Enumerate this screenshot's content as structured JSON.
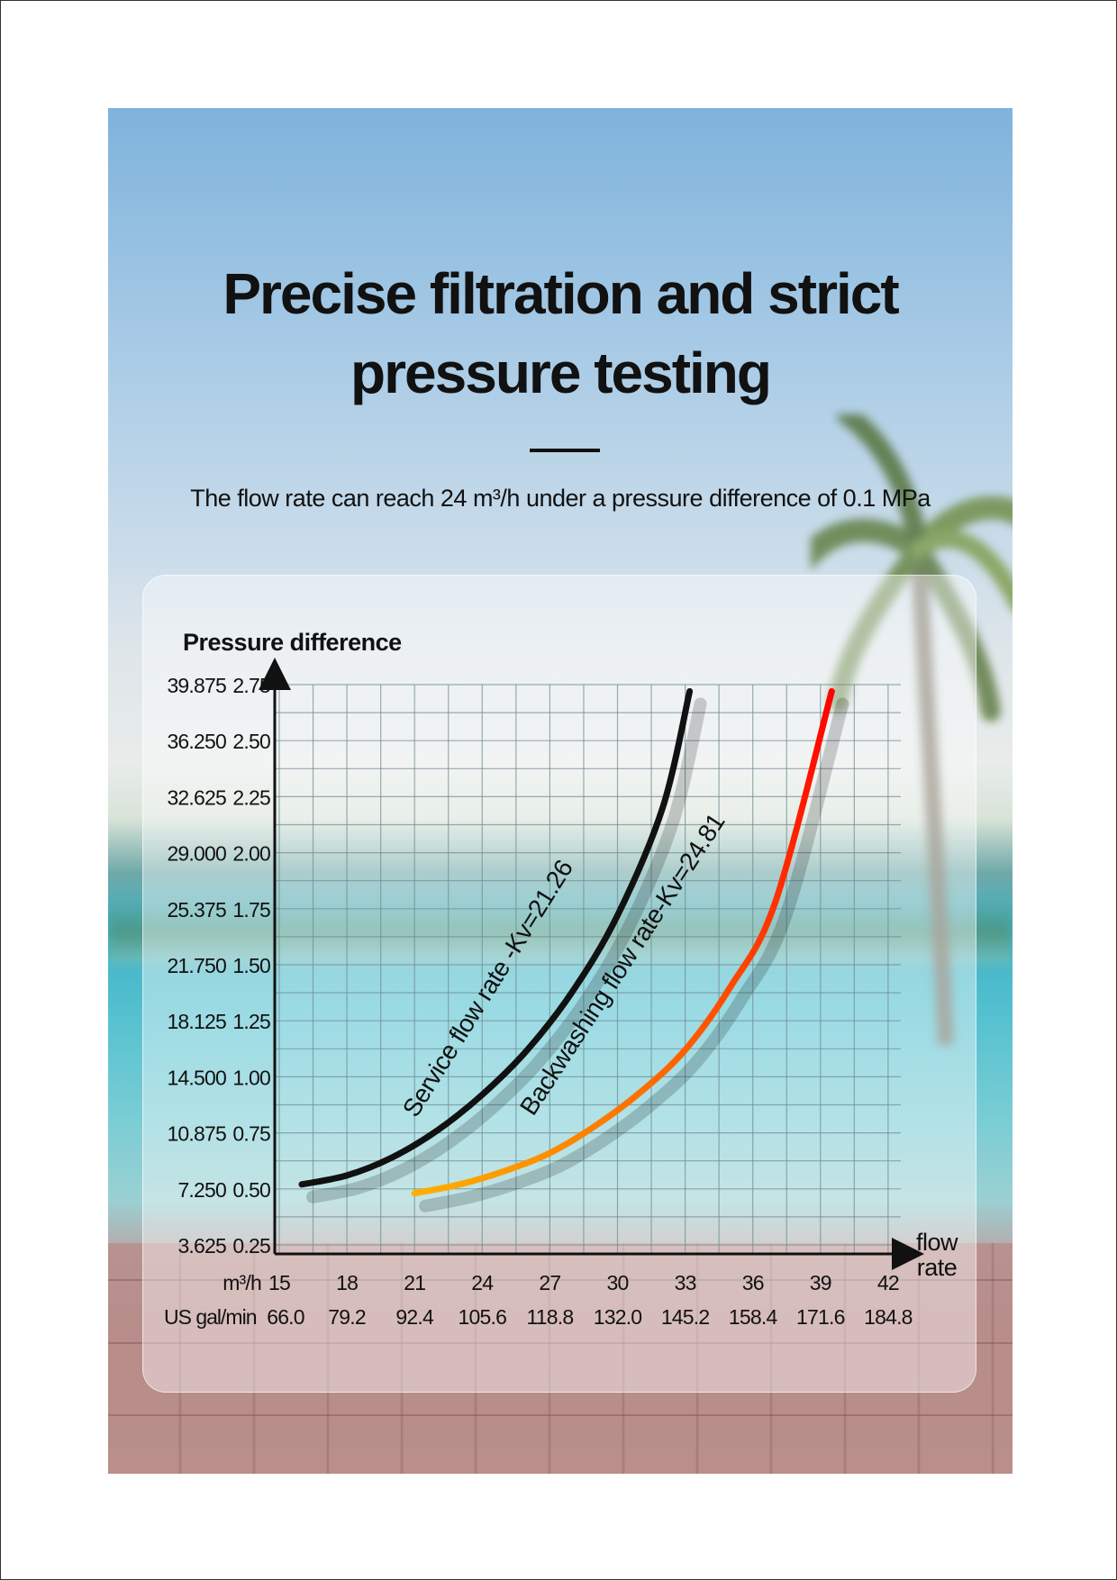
{
  "headline": {
    "line1": "Precise filtration and strict",
    "line2": "pressure testing"
  },
  "subtitle": "The flow rate can reach 24 m³/h under a pressure difference of 0.1 MPa",
  "colors": {
    "service_curve": "#111111",
    "backwash_curve_start": "#ffb000",
    "backwash_curve_end": "#ff0000",
    "grid": "#6f8c93"
  },
  "chart_data": {
    "type": "line",
    "ylabel": "Pressure difference",
    "xlabel": "flow rate",
    "x_unit_primary": "m³/h",
    "x_unit_secondary": "US gal/min",
    "x_ticks": [
      15,
      18,
      21,
      24,
      27,
      30,
      33,
      36,
      39,
      42
    ],
    "x_ticks_secondary": [
      "66.0",
      "79.2",
      "92.4",
      "105.6",
      "118.8",
      "132.0",
      "145.2",
      "158.4",
      "171.6",
      "184.8"
    ],
    "y_ticks": [
      0.25,
      0.5,
      0.75,
      1.0,
      1.25,
      1.5,
      1.75,
      2.0,
      2.25,
      2.5,
      2.75
    ],
    "y_ticks_label": [
      "0.25",
      "0.50",
      "0.75",
      "1.00",
      "1.25",
      "1.50",
      "1.75",
      "2.00",
      "2.25",
      "2.50",
      "2.75"
    ],
    "y_ticks_secondary": [
      "3.625",
      "7.250",
      "10.875",
      "14.500",
      "18.125",
      "21.750",
      "25.375",
      "29.000",
      "32.625",
      "36.250",
      "39.875"
    ],
    "xlim": [
      14.3,
      42.5
    ],
    "ylim": [
      0.25,
      2.75
    ],
    "grid": true,
    "series": [
      {
        "name": "Service flow rate -Kv=21.26",
        "x": [
          16,
          18,
          20,
          22,
          24,
          26,
          28,
          30,
          32,
          33.2
        ],
        "y": [
          0.52,
          0.56,
          0.64,
          0.76,
          0.92,
          1.12,
          1.38,
          1.72,
          2.2,
          2.72
        ]
      },
      {
        "name": "Backwashing flow rate-Kv=24.81",
        "x": [
          21,
          23,
          25,
          27,
          29,
          31,
          33,
          35,
          37,
          39.5
        ],
        "y": [
          0.48,
          0.52,
          0.58,
          0.66,
          0.78,
          0.93,
          1.12,
          1.4,
          1.78,
          2.72
        ]
      }
    ]
  }
}
